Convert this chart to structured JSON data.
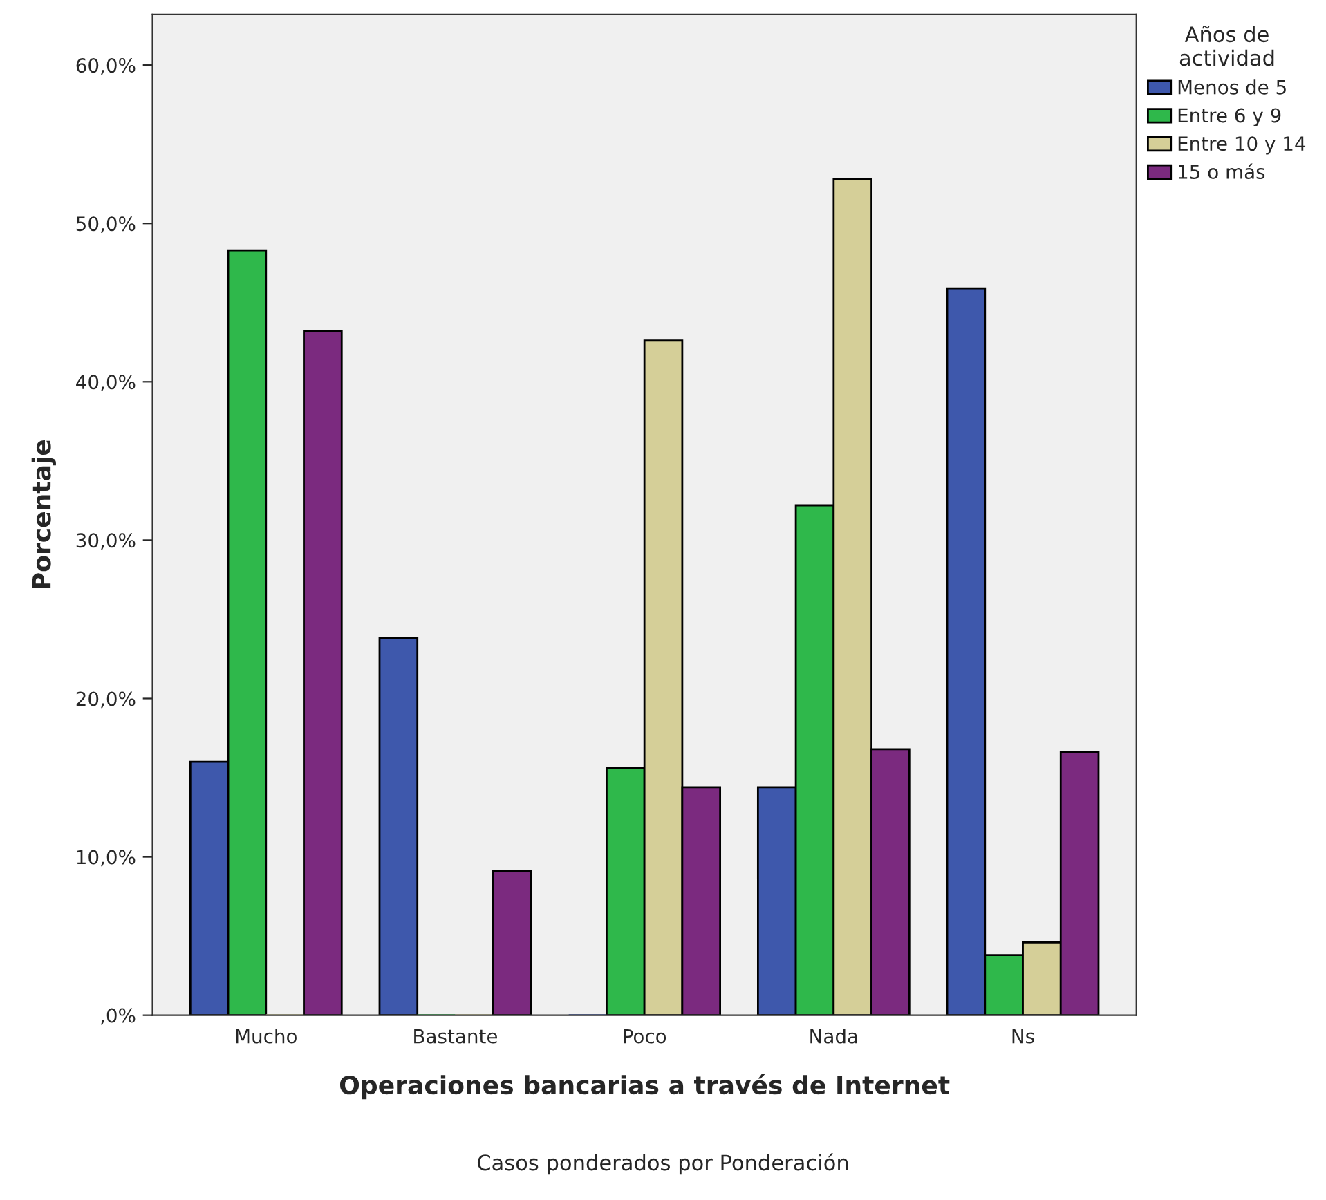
{
  "chart_data": {
    "type": "bar",
    "xlabel": "Operaciones bancarias a través de Internet",
    "ylabel": "Porcentaje",
    "legend_title": "Años de\nactividad",
    "categories": [
      "Mucho",
      "Bastante",
      "Poco",
      "Nada",
      "Ns"
    ],
    "series": [
      {
        "name": "Menos de 5",
        "color": "#3e58ac",
        "values": [
          16.0,
          23.8,
          0,
          14.4,
          45.9
        ]
      },
      {
        "name": "Entre 6 y 9",
        "color": "#2fb84b",
        "values": [
          48.3,
          0,
          15.6,
          32.2,
          3.8
        ]
      },
      {
        "name": "Entre 10 y 14",
        "color": "#d5cf98",
        "values": [
          0,
          0,
          42.6,
          52.8,
          4.6
        ]
      },
      {
        "name": "15 o más",
        "color": "#7b2a7f",
        "values": [
          43.2,
          9.1,
          14.4,
          16.8,
          16.6
        ]
      }
    ],
    "ylim": [
      0,
      63.2
    ],
    "yticks": [
      {
        "value": 0,
        "label": ",0%"
      },
      {
        "value": 10,
        "label": "10,0%"
      },
      {
        "value": 20,
        "label": "20,0%"
      },
      {
        "value": 30,
        "label": "30,0%"
      },
      {
        "value": 40,
        "label": "40,0%"
      },
      {
        "value": 50,
        "label": "50,0%"
      },
      {
        "value": 60,
        "label": "60,0%"
      }
    ],
    "grid": false,
    "legend": "top right",
    "annotations": [
      "Casos ponderados por Ponderación"
    ]
  }
}
